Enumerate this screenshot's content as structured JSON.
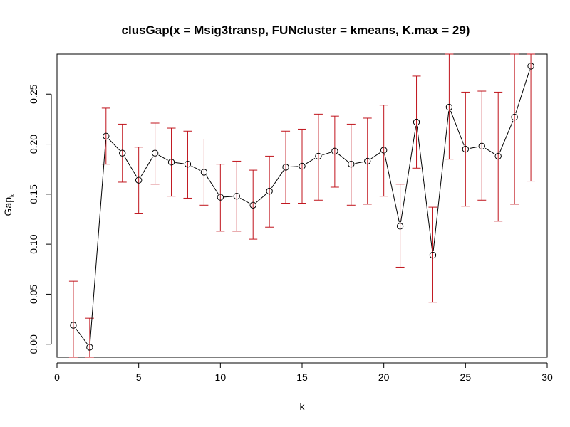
{
  "chart_data": {
    "type": "scatter",
    "title": "clusGap(x = Msig3transp, FUNcluster = kmeans, K.max = 29)",
    "xlabel": "k",
    "ylabel": "Gap",
    "ylabel_subscript": "k",
    "xlim": [
      0,
      30
    ],
    "ylim": [
      -0.013,
      0.29
    ],
    "xticks": [
      0,
      5,
      10,
      15,
      20,
      25,
      30
    ],
    "yticks": [
      0.0,
      0.05,
      0.1,
      0.15,
      0.2,
      0.25
    ],
    "ytick_labels": [
      "0.00",
      "0.05",
      "0.10",
      "0.15",
      "0.20",
      "0.25"
    ],
    "grid": false,
    "line_color": "#000000",
    "errorbar_color": "#c0141c",
    "series": [
      {
        "x": [
          1,
          2,
          3,
          4,
          5,
          6,
          7,
          8,
          9,
          10,
          11,
          12,
          13,
          14,
          15,
          16,
          17,
          18,
          19,
          20,
          21,
          22,
          23,
          24,
          25,
          26,
          27,
          28,
          29
        ],
        "y": [
          0.019,
          -0.003,
          0.208,
          0.191,
          0.164,
          0.191,
          0.182,
          0.18,
          0.172,
          0.147,
          0.148,
          0.139,
          0.153,
          0.177,
          0.178,
          0.188,
          0.193,
          0.18,
          0.183,
          0.194,
          0.118,
          0.222,
          0.089,
          0.237,
          0.195,
          0.198,
          0.188,
          0.227,
          0.278
        ],
        "error_low": [
          -0.014,
          -0.014,
          0.18,
          0.162,
          0.131,
          0.16,
          0.148,
          0.146,
          0.139,
          0.113,
          0.113,
          0.105,
          0.117,
          0.141,
          0.141,
          0.144,
          0.157,
          0.139,
          0.14,
          0.148,
          0.077,
          0.176,
          0.042,
          0.185,
          0.138,
          0.144,
          0.123,
          0.14,
          0.163
        ],
        "error_high": [
          0.063,
          0.026,
          0.236,
          0.22,
          0.197,
          0.221,
          0.216,
          0.213,
          0.205,
          0.18,
          0.183,
          0.174,
          0.188,
          0.213,
          0.215,
          0.23,
          0.228,
          0.22,
          0.226,
          0.239,
          0.16,
          0.268,
          0.137,
          0.29,
          0.252,
          0.253,
          0.252,
          0.29,
          0.29
        ]
      }
    ]
  }
}
